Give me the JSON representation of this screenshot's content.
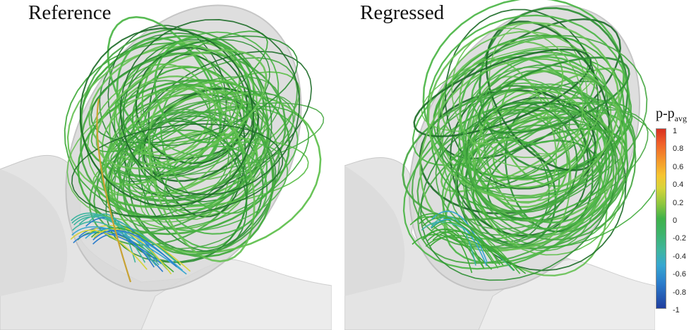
{
  "panels": [
    {
      "title": "Reference"
    },
    {
      "title": "Regressed"
    }
  ],
  "colorbar": {
    "label_main": "p-p",
    "label_sub": "avg",
    "ticks": [
      "1",
      "0.8",
      "0.6",
      "0.4",
      "0.2",
      "0",
      "-0.2",
      "-0.4",
      "-0.6",
      "-0.8",
      "-1"
    ]
  },
  "colors": {
    "streamline_green": "#3faa3a",
    "streamline_dark": "#1f6e2a",
    "surface": "#e9e9e9",
    "red": "#d7301f",
    "blue": "#1f3e9e"
  }
}
